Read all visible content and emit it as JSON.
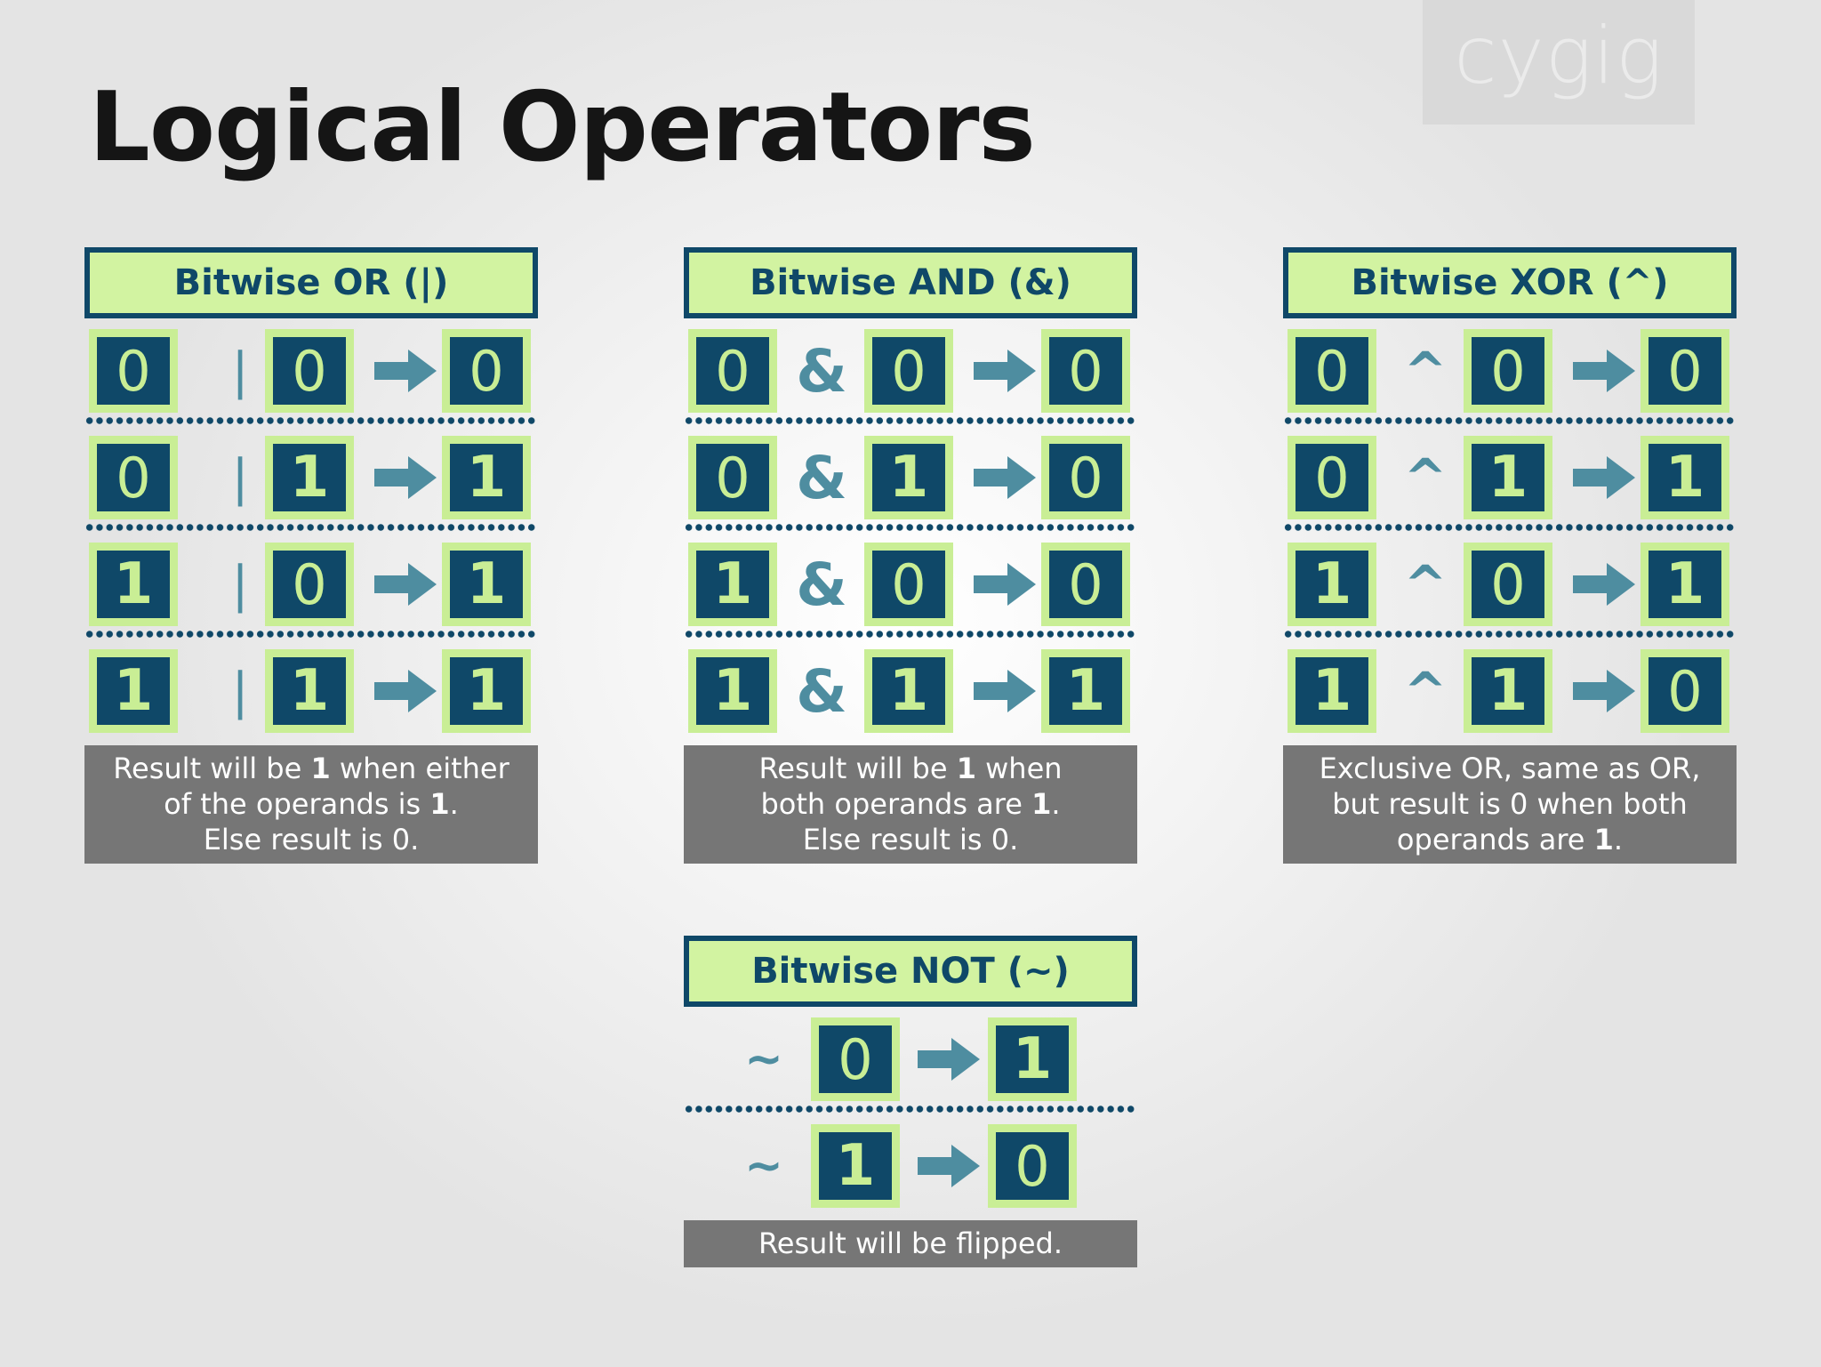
{
  "watermark": "cygig",
  "title": "Logical Operators",
  "colors": {
    "dark_blue": "#0f4868",
    "light_green": "#d2f3a1",
    "bit_border": "#c9ee95",
    "operator": "#4e8da0",
    "note_bg": "#767676"
  },
  "icons": {
    "arrow": "right-arrow-icon"
  },
  "cards": {
    "or": {
      "header": "Bitwise OR (|)",
      "operator": "|",
      "rows": [
        {
          "a": "0",
          "b": "0",
          "result": "0"
        },
        {
          "a": "0",
          "b": "1",
          "result": "1"
        },
        {
          "a": "1",
          "b": "0",
          "result": "1"
        },
        {
          "a": "1",
          "b": "1",
          "result": "1"
        }
      ],
      "note": {
        "l1a": "Result will be ",
        "l1b": "1",
        "l1c": " when either",
        "l2a": "of the operands is ",
        "l2b": "1",
        "l2c": ".",
        "l3a": "Else result is ",
        "l3b": "0",
        "l3c": "."
      }
    },
    "and": {
      "header": "Bitwise AND (&)",
      "operator": "&",
      "rows": [
        {
          "a": "0",
          "b": "0",
          "result": "0"
        },
        {
          "a": "0",
          "b": "1",
          "result": "0"
        },
        {
          "a": "1",
          "b": "0",
          "result": "0"
        },
        {
          "a": "1",
          "b": "1",
          "result": "1"
        }
      ],
      "note": {
        "l1a": "Result will be ",
        "l1b": "1",
        "l1c": " when",
        "l2a": "both operands are ",
        "l2b": "1",
        "l2c": ".",
        "l3a": "Else result is ",
        "l3b": "0",
        "l3c": "."
      }
    },
    "xor": {
      "header": "Bitwise XOR (^)",
      "operator": "^",
      "rows": [
        {
          "a": "0",
          "b": "0",
          "result": "0"
        },
        {
          "a": "0",
          "b": "1",
          "result": "1"
        },
        {
          "a": "1",
          "b": "0",
          "result": "1"
        },
        {
          "a": "1",
          "b": "1",
          "result": "0"
        }
      ],
      "note": {
        "l1a": "Exclusive OR, same as OR,",
        "l2a": "but result is ",
        "l2b": "0",
        "l2c": " when both",
        "l3a": "operands are ",
        "l3b": "1",
        "l3c": "."
      }
    },
    "not": {
      "header": "Bitwise NOT (~)",
      "operator": "~",
      "rows": [
        {
          "a": "0",
          "result": "1"
        },
        {
          "a": "1",
          "result": "0"
        }
      ],
      "note": {
        "l1a": "Result will be flipped."
      }
    }
  }
}
